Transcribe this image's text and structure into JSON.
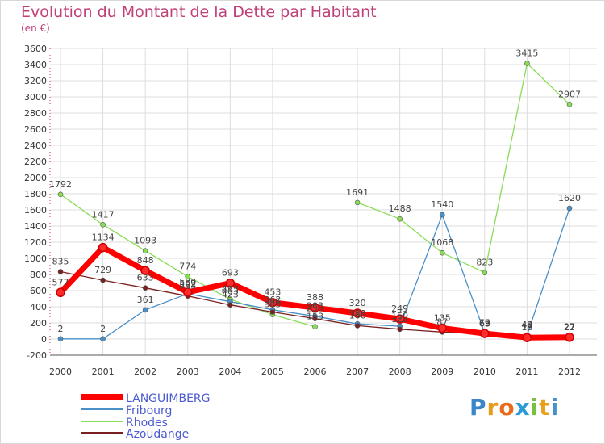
{
  "chart_data": {
    "type": "line",
    "title": "Evolution du Montant de la Dette par Habitant",
    "subtitle": "(en €)",
    "x": [
      "2000",
      "2001",
      "2002",
      "2003",
      "2004",
      "2005",
      "2006",
      "2007",
      "2008",
      "2009",
      "2010",
      "2011",
      "2012"
    ],
    "yticks": [
      -200,
      0,
      200,
      400,
      600,
      800,
      1000,
      1200,
      1400,
      1600,
      1800,
      2000,
      2200,
      2400,
      2600,
      2800,
      3000,
      3200,
      3400,
      3600
    ],
    "ylim": [
      -200,
      3600
    ],
    "grid": true,
    "legend_position": "bottom-left",
    "series": [
      {
        "name": "LANGUIMBERG",
        "color": "#ff0000",
        "values": [
          577,
          1134,
          848,
          580,
          693,
          453,
          388,
          320,
          249,
          135,
          69,
          18,
          22
        ],
        "labels": [
          "577",
          "1134",
          "848",
          "580",
          "693",
          "453",
          "388",
          "320",
          "249",
          "135",
          "69",
          "18",
          "22"
        ]
      },
      {
        "name": "Fribourg",
        "color": "#4a90c8",
        "values": [
          2,
          2,
          361,
          562,
          463,
          362,
          283,
          188,
          159,
          1540,
          75,
          48,
          1620
        ],
        "labels": [
          "2",
          "2",
          "361",
          "562",
          "463",
          "362",
          "283",
          "188",
          "159",
          "1540",
          "75",
          "48",
          "1620"
        ]
      },
      {
        "name": "Rhodes",
        "color": "#88dd55",
        "values": [
          1792,
          1417,
          1093,
          774,
          493,
          303,
          153,
          1691,
          1488,
          1068,
          823,
          3415,
          2907
        ],
        "labels": [
          "1792",
          "1417",
          "1093",
          "774",
          "493",
          "303",
          "153",
          "1691",
          "1488",
          "1068",
          "823",
          "3415",
          "2907"
        ]
      },
      {
        "name": "Azoudange",
        "color": "#7a2020",
        "values": [
          835,
          729,
          633,
          533,
          423,
          335,
          253,
          166,
          122,
          87,
          63,
          44,
          27
        ],
        "labels": [
          "835",
          "729",
          "633",
          "533",
          "423",
          "335",
          "253",
          "166",
          "122",
          "87",
          "63",
          "44",
          "27"
        ]
      }
    ]
  },
  "logo": {
    "text": "Proxiti",
    "letters": [
      "P",
      "r",
      "o",
      "x",
      "i",
      "t",
      "i"
    ],
    "colors": [
      "#3a86c8",
      "#e89a1a",
      "#e86a1a",
      "#2a9ad8",
      "#7ac040",
      "#e8a01a",
      "#4a90c8"
    ]
  }
}
